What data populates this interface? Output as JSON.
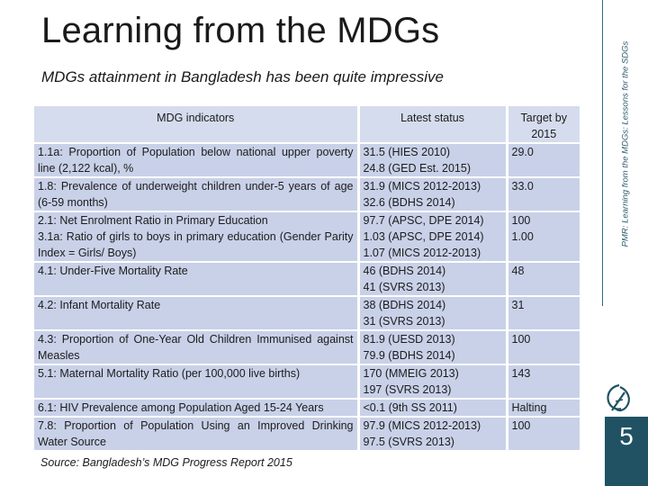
{
  "title": "Learning from the MDGs",
  "subtitle": "MDGs attainment in Bangladesh has been quite impressive",
  "side_text": "PMR: Learning from the MDGs: Lessons for the SDGs",
  "page_number": "5",
  "source": "Source: Bangladesh’s MDG Progress Report 2015",
  "colors": {
    "header_bg": "#d5dcee",
    "row_bg": "#c9d1e8",
    "accent": "#205263"
  },
  "table": {
    "headers": {
      "indicator": "MDG indicators",
      "status": "Latest status",
      "target": "Target by 2015"
    },
    "rows": [
      {
        "indicator": [
          "1.1a: Proportion of Population below national upper poverty line (2,122 kcal), %"
        ],
        "status": [
          "31.5 (HIES 2010)",
          "24.8 (GED Est. 2015)"
        ],
        "target": "29.0"
      },
      {
        "indicator": [
          "1.8: Prevalence of underweight children under-5 years of age (6-59 months)"
        ],
        "status": [
          "31.9 (MICS 2012-2013)",
          "32.6 (BDHS 2014)"
        ],
        "target": "33.0"
      },
      {
        "indicator": [
          "2.1: Net Enrolment Ratio in Primary Education",
          "3.1a: Ratio of girls to boys in primary education (Gender Parity Index = Girls/ Boys)"
        ],
        "status": [
          "97.7 (APSC, DPE 2014)",
          "1.03 (APSC, DPE 2014)",
          "1.07 (MICS 2012-2013)"
        ],
        "target": "100\n1.00"
      },
      {
        "indicator": [
          "4.1: Under-Five Mortality Rate"
        ],
        "status": [
          "46 (BDHS 2014)",
          "41 (SVRS 2013)"
        ],
        "target": "48"
      },
      {
        "indicator": [
          "4.2: Infant Mortality Rate"
        ],
        "status": [
          "38 (BDHS 2014)",
          "31 (SVRS 2013)"
        ],
        "target": "31"
      },
      {
        "indicator": [
          "4.3: Proportion of One-Year Old Children Immunised against Measles"
        ],
        "status": [
          "81.9 (UESD 2013)",
          "79.9 (BDHS 2014)"
        ],
        "target": "100"
      },
      {
        "indicator": [
          "5.1: Maternal Mortality Ratio (per 100,000 live births)"
        ],
        "status": [
          "170 (MMEIG 2013)",
          "197 (SVRS 2013)"
        ],
        "target": "143"
      },
      {
        "indicator": [
          "6.1: HIV Prevalence among Population Aged 15-24 Years"
        ],
        "status": [
          "<0.1 (9th SS 2011)"
        ],
        "target": "Halting"
      },
      {
        "indicator": [
          "7.8: Proportion of Population Using an Improved Drinking Water Source"
        ],
        "status": [
          "97.9 (MICS 2012-2013)",
          "97.5 (SVRS 2013)"
        ],
        "target": "100"
      }
    ]
  }
}
